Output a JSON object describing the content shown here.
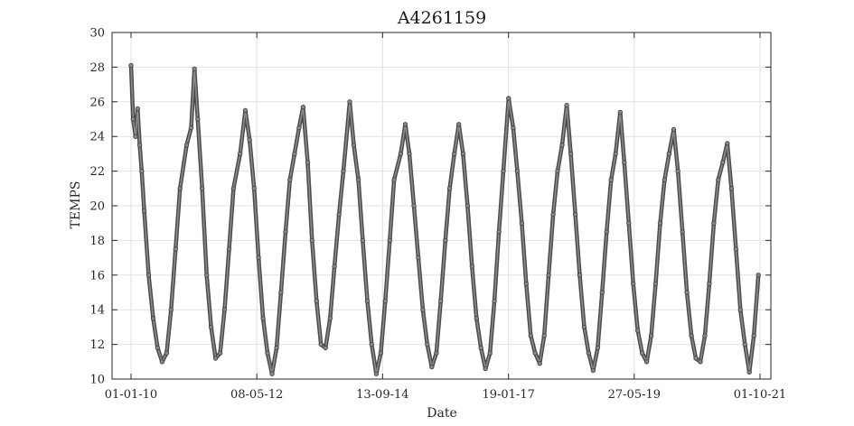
{
  "chart_data": {
    "type": "scatter",
    "title": "A4261159",
    "xlabel": "Date",
    "ylabel": "TEMPS",
    "xlim": [
      "2010-01-01",
      "2021-10-01"
    ],
    "ylim": [
      10,
      30
    ],
    "x_ticks": [
      "01-01-10",
      "08-05-12",
      "13-09-14",
      "19-01-17",
      "27-05-19",
      "01-10-21"
    ],
    "x_tick_dates": [
      "2010-01-01",
      "2012-05-08",
      "2014-09-13",
      "2017-01-19",
      "2019-05-27",
      "2021-10-01"
    ],
    "y_ticks": [
      10,
      12,
      14,
      16,
      18,
      20,
      22,
      24,
      26,
      28,
      30
    ],
    "grid": true,
    "legend": "none",
    "marker_color": "#4a4a4a",
    "series": [
      {
        "points": [
          [
            "2010-01-01",
            28.1
          ],
          [
            "2010-01-15",
            25.0
          ],
          [
            "2010-02-01",
            24.0
          ],
          [
            "2010-02-15",
            25.6
          ],
          [
            "2010-03-01",
            23.5
          ],
          [
            "2010-03-15",
            22.0
          ],
          [
            "2010-04-01",
            19.7
          ],
          [
            "2010-05-01",
            16.0
          ],
          [
            "2010-06-01",
            13.5
          ],
          [
            "2010-07-01",
            11.8
          ],
          [
            "2010-08-01",
            11.0
          ],
          [
            "2010-09-01",
            11.5
          ],
          [
            "2010-10-01",
            14.0
          ],
          [
            "2010-11-01",
            17.5
          ],
          [
            "2010-12-01",
            21.0
          ],
          [
            "2011-01-15",
            23.5
          ],
          [
            "2011-02-15",
            24.5
          ],
          [
            "2011-03-10",
            27.9
          ],
          [
            "2011-04-01",
            25.0
          ],
          [
            "2011-05-01",
            21.0
          ],
          [
            "2011-06-01",
            16.0
          ],
          [
            "2011-07-01",
            13.0
          ],
          [
            "2011-08-01",
            11.2
          ],
          [
            "2011-09-01",
            11.5
          ],
          [
            "2011-10-01",
            14.0
          ],
          [
            "2011-11-01",
            17.5
          ],
          [
            "2011-12-01",
            21.0
          ],
          [
            "2012-01-15",
            23.0
          ],
          [
            "2012-02-20",
            25.5
          ],
          [
            "2012-03-20",
            23.8
          ],
          [
            "2012-04-20",
            21.0
          ],
          [
            "2012-05-20",
            17.0
          ],
          [
            "2012-06-20",
            13.5
          ],
          [
            "2012-07-20",
            11.5
          ],
          [
            "2012-08-20",
            10.3
          ],
          [
            "2012-09-20",
            11.8
          ],
          [
            "2012-10-20",
            15.0
          ],
          [
            "2012-11-20",
            18.5
          ],
          [
            "2012-12-20",
            21.5
          ],
          [
            "2013-01-20",
            23.0
          ],
          [
            "2013-02-20",
            24.5
          ],
          [
            "2013-03-20",
            25.7
          ],
          [
            "2013-04-20",
            22.5
          ],
          [
            "2013-05-20",
            18.0
          ],
          [
            "2013-06-20",
            14.5
          ],
          [
            "2013-07-20",
            12.0
          ],
          [
            "2013-08-20",
            11.8
          ],
          [
            "2013-09-20",
            13.5
          ],
          [
            "2013-10-20",
            16.5
          ],
          [
            "2013-11-20",
            19.5
          ],
          [
            "2013-12-20",
            22.0
          ],
          [
            "2014-02-01",
            26.0
          ],
          [
            "2014-03-01",
            23.5
          ],
          [
            "2014-04-01",
            21.5
          ],
          [
            "2014-05-01",
            18.0
          ],
          [
            "2014-06-01",
            14.5
          ],
          [
            "2014-07-01",
            12.0
          ],
          [
            "2014-08-01",
            10.3
          ],
          [
            "2014-09-01",
            11.5
          ],
          [
            "2014-10-01",
            14.5
          ],
          [
            "2014-11-01",
            18.0
          ],
          [
            "2014-12-01",
            21.5
          ],
          [
            "2015-01-15",
            23.0
          ],
          [
            "2015-02-15",
            24.7
          ],
          [
            "2015-03-15",
            23.0
          ],
          [
            "2015-04-15",
            20.0
          ],
          [
            "2015-05-15",
            17.0
          ],
          [
            "2015-06-15",
            14.0
          ],
          [
            "2015-07-15",
            12.0
          ],
          [
            "2015-08-15",
            10.7
          ],
          [
            "2015-09-15",
            11.5
          ],
          [
            "2015-10-15",
            14.5
          ],
          [
            "2015-11-15",
            18.0
          ],
          [
            "2015-12-15",
            21.0
          ],
          [
            "2016-01-15",
            23.0
          ],
          [
            "2016-02-15",
            24.7
          ],
          [
            "2016-03-15",
            23.0
          ],
          [
            "2016-04-15",
            20.0
          ],
          [
            "2016-05-15",
            16.5
          ],
          [
            "2016-06-15",
            13.5
          ],
          [
            "2016-07-15",
            11.8
          ],
          [
            "2016-08-15",
            10.6
          ],
          [
            "2016-09-15",
            11.5
          ],
          [
            "2016-10-15",
            14.5
          ],
          [
            "2016-11-15",
            18.5
          ],
          [
            "2016-12-15",
            22.0
          ],
          [
            "2017-01-20",
            26.2
          ],
          [
            "2017-02-20",
            24.5
          ],
          [
            "2017-03-20",
            22.0
          ],
          [
            "2017-04-20",
            19.0
          ],
          [
            "2017-05-20",
            15.5
          ],
          [
            "2017-06-20",
            12.5
          ],
          [
            "2017-07-20",
            11.5
          ],
          [
            "2017-08-20",
            10.9
          ],
          [
            "2017-09-20",
            12.5
          ],
          [
            "2017-10-20",
            16.0
          ],
          [
            "2017-11-20",
            19.5
          ],
          [
            "2017-12-20",
            22.0
          ],
          [
            "2018-01-20",
            23.5
          ],
          [
            "2018-02-20",
            25.8
          ],
          [
            "2018-03-20",
            23.0
          ],
          [
            "2018-04-20",
            19.5
          ],
          [
            "2018-05-20",
            16.0
          ],
          [
            "2018-06-20",
            13.0
          ],
          [
            "2018-07-20",
            11.5
          ],
          [
            "2018-08-20",
            10.5
          ],
          [
            "2018-09-20",
            11.8
          ],
          [
            "2018-10-20",
            15.0
          ],
          [
            "2018-11-20",
            18.5
          ],
          [
            "2018-12-20",
            21.5
          ],
          [
            "2019-01-20",
            23.0
          ],
          [
            "2019-02-20",
            25.4
          ],
          [
            "2019-03-20",
            22.5
          ],
          [
            "2019-04-20",
            19.0
          ],
          [
            "2019-05-20",
            15.5
          ],
          [
            "2019-06-20",
            12.8
          ],
          [
            "2019-07-20",
            11.5
          ],
          [
            "2019-08-20",
            11.0
          ],
          [
            "2019-09-20",
            12.5
          ],
          [
            "2019-10-20",
            15.5
          ],
          [
            "2019-11-20",
            19.0
          ],
          [
            "2019-12-20",
            21.5
          ],
          [
            "2020-01-20",
            23.0
          ],
          [
            "2020-02-20",
            24.4
          ],
          [
            "2020-03-20",
            22.0
          ],
          [
            "2020-04-20",
            18.5
          ],
          [
            "2020-05-20",
            15.0
          ],
          [
            "2020-06-20",
            12.5
          ],
          [
            "2020-07-20",
            11.2
          ],
          [
            "2020-08-20",
            11.0
          ],
          [
            "2020-09-20",
            12.5
          ],
          [
            "2020-10-20",
            15.5
          ],
          [
            "2020-11-20",
            19.0
          ],
          [
            "2020-12-20",
            21.5
          ],
          [
            "2021-01-20",
            22.5
          ],
          [
            "2021-02-20",
            23.6
          ],
          [
            "2021-03-20",
            21.0
          ],
          [
            "2021-04-20",
            17.5
          ],
          [
            "2021-05-20",
            14.0
          ],
          [
            "2021-06-20",
            12.0
          ],
          [
            "2021-07-20",
            10.4
          ],
          [
            "2021-08-20",
            12.5
          ],
          [
            "2021-09-20",
            16.0
          ]
        ]
      }
    ]
  }
}
